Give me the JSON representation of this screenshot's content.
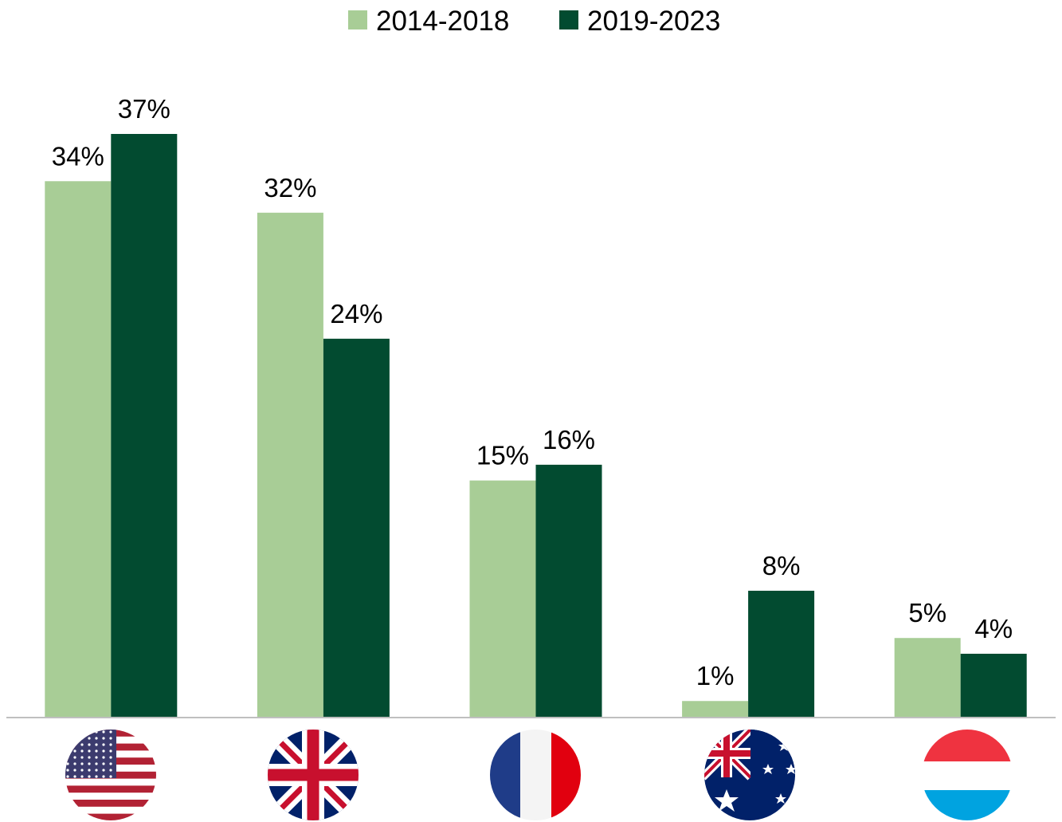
{
  "chart_data": {
    "type": "bar",
    "categories": [
      null,
      null,
      null,
      null,
      null
    ],
    "series": [
      {
        "name": "2014-2018",
        "color": "#a8cd96",
        "values": [
          34,
          32,
          15,
          1,
          5
        ],
        "value_labels": [
          "34%",
          "32%",
          "15%",
          "1%",
          "5%"
        ]
      },
      {
        "name": "2019-2023",
        "color": "#024b30",
        "values": [
          37,
          24,
          16,
          8,
          4
        ],
        "value_labels": [
          "37%",
          "24%",
          "16%",
          "8%",
          "4%"
        ]
      }
    ],
    "legend": "top"
  }
}
